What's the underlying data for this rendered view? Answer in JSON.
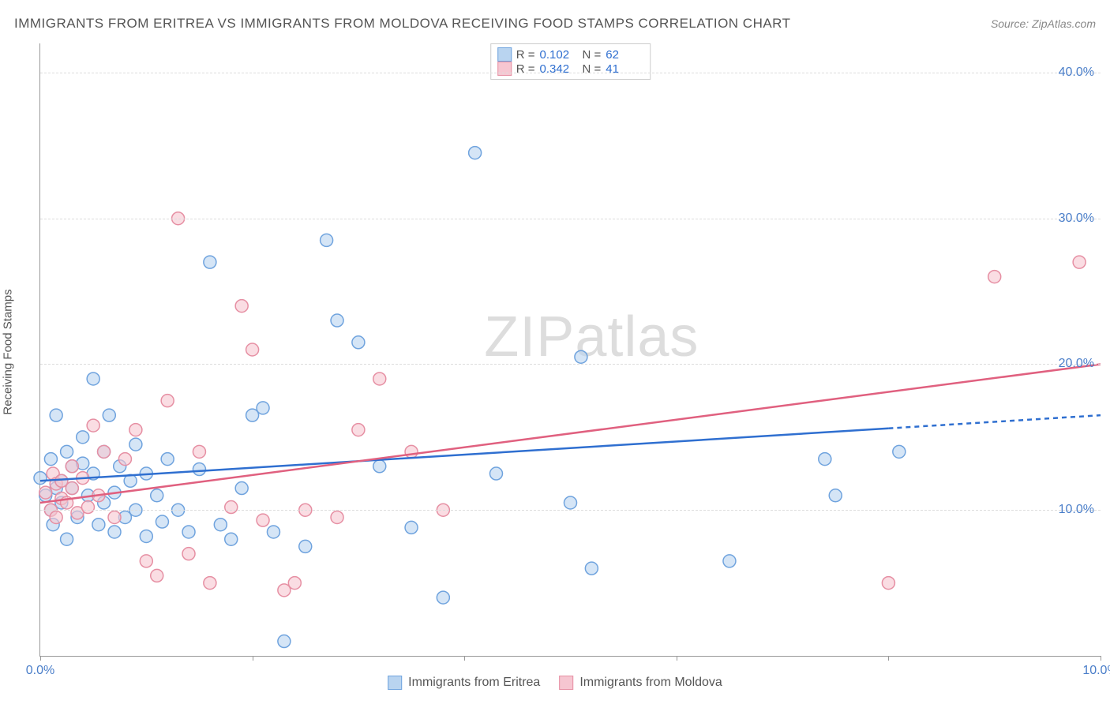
{
  "title": "IMMIGRANTS FROM ERITREA VS IMMIGRANTS FROM MOLDOVA RECEIVING FOOD STAMPS CORRELATION CHART",
  "source_prefix": "Source: ",
  "source_name": "ZipAtlas.com",
  "y_axis_label": "Receiving Food Stamps",
  "watermark_a": "ZIP",
  "watermark_b": "atlas",
  "chart": {
    "type": "scatter",
    "x_domain": [
      0,
      10
    ],
    "y_domain": [
      0,
      42
    ],
    "x_ticks": [
      0,
      2,
      4,
      6,
      8,
      10
    ],
    "x_tick_labels": {
      "0": "0.0%",
      "10": "10.0%"
    },
    "y_gridlines": [
      10,
      20,
      30,
      40
    ],
    "y_tick_labels": {
      "10": "10.0%",
      "20": "20.0%",
      "30": "30.0%",
      "40": "40.0%"
    },
    "background_color": "#ffffff",
    "grid_color": "#dddddd",
    "axis_color": "#999999",
    "tick_label_color": "#4a7ec9",
    "marker_radius": 8,
    "marker_stroke_width": 1.5,
    "trend_line_width": 2.5,
    "series": [
      {
        "name": "Immigrants from Eritrea",
        "fill": "#b9d4f0",
        "fill_opacity": 0.6,
        "stroke": "#6fa3de",
        "line_color": "#2f6fd0",
        "r_value": "0.102",
        "n_value": "62",
        "trend": {
          "x1": 0,
          "y1": 12.0,
          "x2": 10,
          "y2": 16.5,
          "solid_until_x": 8.0
        },
        "points": [
          [
            0.0,
            12.2
          ],
          [
            0.05,
            11.0
          ],
          [
            0.1,
            13.5
          ],
          [
            0.1,
            10.0
          ],
          [
            0.12,
            9.0
          ],
          [
            0.15,
            16.5
          ],
          [
            0.15,
            11.5
          ],
          [
            0.2,
            12.0
          ],
          [
            0.2,
            10.5
          ],
          [
            0.25,
            14.0
          ],
          [
            0.25,
            8.0
          ],
          [
            0.3,
            13.0
          ],
          [
            0.3,
            11.5
          ],
          [
            0.35,
            9.5
          ],
          [
            0.4,
            15.0
          ],
          [
            0.4,
            13.2
          ],
          [
            0.45,
            11.0
          ],
          [
            0.5,
            19.0
          ],
          [
            0.5,
            12.5
          ],
          [
            0.55,
            9.0
          ],
          [
            0.6,
            14.0
          ],
          [
            0.6,
            10.5
          ],
          [
            0.65,
            16.5
          ],
          [
            0.7,
            11.2
          ],
          [
            0.7,
            8.5
          ],
          [
            0.75,
            13.0
          ],
          [
            0.8,
            9.5
          ],
          [
            0.85,
            12.0
          ],
          [
            0.9,
            14.5
          ],
          [
            0.9,
            10.0
          ],
          [
            1.0,
            8.2
          ],
          [
            1.0,
            12.5
          ],
          [
            1.1,
            11.0
          ],
          [
            1.15,
            9.2
          ],
          [
            1.2,
            13.5
          ],
          [
            1.3,
            10.0
          ],
          [
            1.4,
            8.5
          ],
          [
            1.5,
            12.8
          ],
          [
            1.6,
            27.0
          ],
          [
            1.7,
            9.0
          ],
          [
            1.8,
            8.0
          ],
          [
            1.9,
            11.5
          ],
          [
            2.0,
            16.5
          ],
          [
            2.1,
            17.0
          ],
          [
            2.2,
            8.5
          ],
          [
            2.3,
            1.0
          ],
          [
            2.5,
            7.5
          ],
          [
            2.7,
            28.5
          ],
          [
            2.8,
            23.0
          ],
          [
            3.0,
            21.5
          ],
          [
            3.2,
            13.0
          ],
          [
            3.5,
            8.8
          ],
          [
            3.8,
            4.0
          ],
          [
            4.1,
            34.5
          ],
          [
            4.3,
            12.5
          ],
          [
            5.0,
            10.5
          ],
          [
            5.1,
            20.5
          ],
          [
            5.2,
            6.0
          ],
          [
            6.5,
            6.5
          ],
          [
            7.4,
            13.5
          ],
          [
            7.5,
            11.0
          ],
          [
            8.1,
            14.0
          ]
        ]
      },
      {
        "name": "Immigrants from Moldova",
        "fill": "#f6c6d1",
        "fill_opacity": 0.6,
        "stroke": "#e68fa3",
        "line_color": "#e0607f",
        "r_value": "0.342",
        "n_value": "41",
        "trend": {
          "x1": 0,
          "y1": 10.5,
          "x2": 10,
          "y2": 20.0,
          "solid_until_x": 10.0
        },
        "points": [
          [
            0.05,
            11.2
          ],
          [
            0.1,
            10.0
          ],
          [
            0.12,
            12.5
          ],
          [
            0.15,
            11.8
          ],
          [
            0.15,
            9.5
          ],
          [
            0.2,
            10.8
          ],
          [
            0.2,
            12.0
          ],
          [
            0.25,
            10.5
          ],
          [
            0.3,
            11.5
          ],
          [
            0.3,
            13.0
          ],
          [
            0.35,
            9.8
          ],
          [
            0.4,
            12.2
          ],
          [
            0.45,
            10.2
          ],
          [
            0.5,
            15.8
          ],
          [
            0.55,
            11.0
          ],
          [
            0.6,
            14.0
          ],
          [
            0.7,
            9.5
          ],
          [
            0.8,
            13.5
          ],
          [
            0.9,
            15.5
          ],
          [
            1.0,
            6.5
          ],
          [
            1.1,
            5.5
          ],
          [
            1.2,
            17.5
          ],
          [
            1.3,
            30.0
          ],
          [
            1.4,
            7.0
          ],
          [
            1.5,
            14.0
          ],
          [
            1.6,
            5.0
          ],
          [
            1.8,
            10.2
          ],
          [
            1.9,
            24.0
          ],
          [
            2.0,
            21.0
          ],
          [
            2.1,
            9.3
          ],
          [
            2.3,
            4.5
          ],
          [
            2.4,
            5.0
          ],
          [
            2.5,
            10.0
          ],
          [
            2.8,
            9.5
          ],
          [
            3.0,
            15.5
          ],
          [
            3.2,
            19.0
          ],
          [
            3.5,
            14.0
          ],
          [
            3.8,
            10.0
          ],
          [
            8.0,
            5.0
          ],
          [
            9.0,
            26.0
          ],
          [
            9.8,
            27.0
          ]
        ]
      }
    ]
  },
  "stats_legend": {
    "r_label": "R  =",
    "n_label": "N  ="
  },
  "legend_labels": {
    "series1": "Immigrants from Eritrea",
    "series2": "Immigrants from Moldova"
  }
}
